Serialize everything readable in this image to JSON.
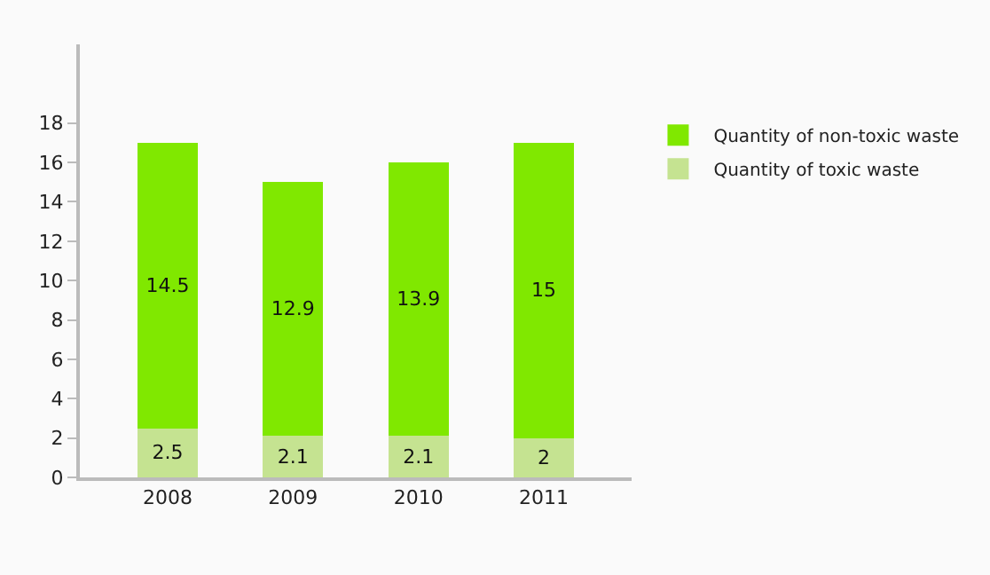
{
  "chart_data": {
    "type": "bar",
    "stacked": true,
    "categories": [
      "2008",
      "2009",
      "2010",
      "2011"
    ],
    "series": [
      {
        "name": "Quantity of toxic waste",
        "color": "#c5e391",
        "values": [
          2.5,
          2.1,
          2.1,
          2
        ]
      },
      {
        "name": "Quantity of non-toxic waste",
        "color": "#80e800",
        "values": [
          14.5,
          12.9,
          13.9,
          15
        ]
      }
    ],
    "data_labels": true,
    "ylim": [
      0,
      22
    ],
    "yticks": [
      0,
      2,
      4,
      6,
      8,
      10,
      12,
      14,
      16,
      18
    ],
    "legend": "right"
  }
}
